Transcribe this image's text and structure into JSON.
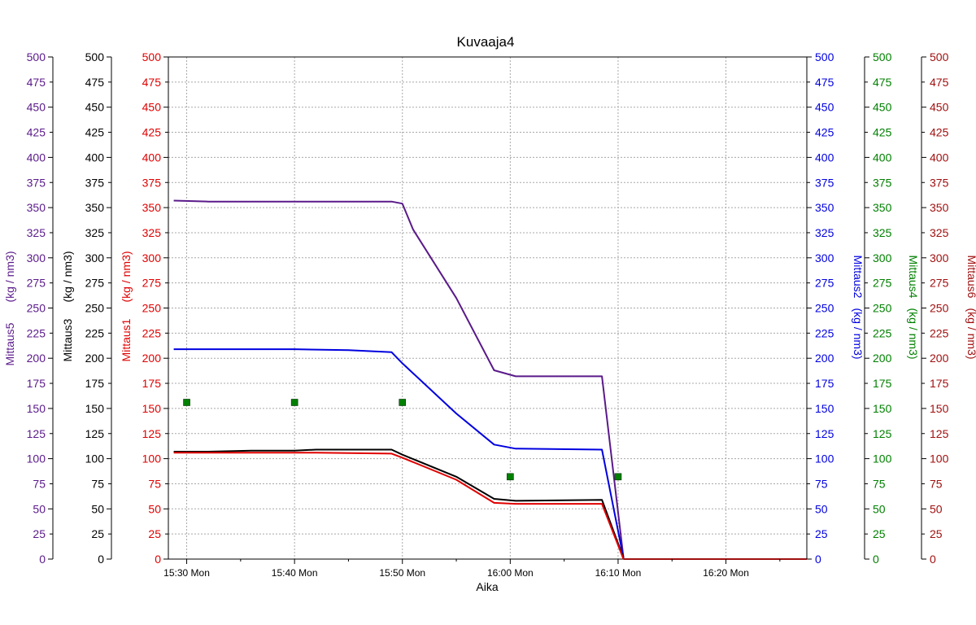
{
  "window": {
    "title": "Kuvaaja4"
  },
  "chart_data": {
    "type": "line",
    "title": "Kuvaaja4",
    "xlabel": "Aika",
    "x_tick_labels": [
      "15:30 Mon",
      "15:40 Mon",
      "15:50 Mon",
      "16:00 Mon",
      "16:10 Mon",
      "16:20 Mon"
    ],
    "x_range_minutes": [
      -1.7,
      57.5
    ],
    "grid": true,
    "axes": [
      {
        "id": "m5",
        "label": "Mittaus5",
        "unit": "(kg / nm3)",
        "color": "#5a1a8a",
        "side": "left",
        "ylim": [
          0,
          500
        ]
      },
      {
        "id": "m3",
        "label": "Mittaus3",
        "unit": "(kg / nm3)",
        "color": "#000000",
        "side": "left",
        "ylim": [
          0,
          500
        ]
      },
      {
        "id": "m1",
        "label": "Mittaus1",
        "unit": "(kg / nm3)",
        "color": "#e00000",
        "side": "left",
        "ylim": [
          0,
          500
        ]
      },
      {
        "id": "m2",
        "label": "Mittaus2",
        "unit": "(kg / nm3)",
        "color": "#0000e0",
        "side": "right",
        "ylim": [
          0,
          500
        ]
      },
      {
        "id": "m4",
        "label": "Mittaus4",
        "unit": "(kg / nm3)",
        "color": "#008000",
        "side": "right",
        "ylim": [
          0,
          500
        ]
      },
      {
        "id": "m6",
        "label": "Mittaus6",
        "unit": "(kg / nm3)",
        "color": "#a01010",
        "side": "right",
        "ylim": [
          0,
          500
        ]
      }
    ],
    "y_ticks": [
      0,
      25,
      50,
      75,
      100,
      125,
      150,
      175,
      200,
      225,
      250,
      275,
      300,
      325,
      350,
      375,
      400,
      425,
      450,
      475,
      500
    ],
    "series": [
      {
        "axis": "m5",
        "color": "#5a1a8a",
        "style": "line",
        "x": [
          -1.2,
          2,
          10,
          19,
          20,
          21,
          25,
          28.5,
          30.5,
          38.5,
          40.5
        ],
        "y": [
          357,
          356,
          356,
          356,
          354,
          328,
          260,
          188,
          182,
          182,
          1
        ]
      },
      {
        "axis": "m2",
        "color": "#0000e0",
        "style": "line",
        "x": [
          -1.2,
          2,
          10,
          15,
          19,
          20,
          25,
          28.5,
          30.5,
          38.5,
          40.5
        ],
        "y": [
          209,
          209,
          209,
          208,
          206,
          195,
          145,
          114,
          110,
          109,
          1
        ]
      },
      {
        "axis": "m3",
        "color": "#000000",
        "style": "line",
        "x": [
          -1.2,
          2,
          6,
          10,
          12,
          19,
          20,
          25,
          28.5,
          30.5,
          38.5,
          40.5
        ],
        "y": [
          107,
          107,
          108,
          108,
          109,
          109,
          104,
          82,
          60,
          58,
          59,
          1
        ]
      },
      {
        "axis": "m1",
        "color": "#e00000",
        "style": "line",
        "x": [
          -1.2,
          2,
          6,
          10,
          12,
          19,
          20,
          25,
          28.5,
          30.5,
          38.5,
          40.5
        ],
        "y": [
          106,
          106,
          106,
          106,
          106,
          105,
          101,
          79,
          56,
          55,
          55,
          0
        ]
      },
      {
        "axis": "m6",
        "color": "#a01010",
        "style": "line",
        "x": [
          40.5,
          57.5
        ],
        "y": [
          0,
          0
        ]
      },
      {
        "axis": "m4",
        "color": "#008000",
        "style": "markers",
        "x": [
          0,
          10,
          20,
          30,
          40
        ],
        "y": [
          156,
          156,
          156,
          82,
          82
        ]
      }
    ]
  }
}
